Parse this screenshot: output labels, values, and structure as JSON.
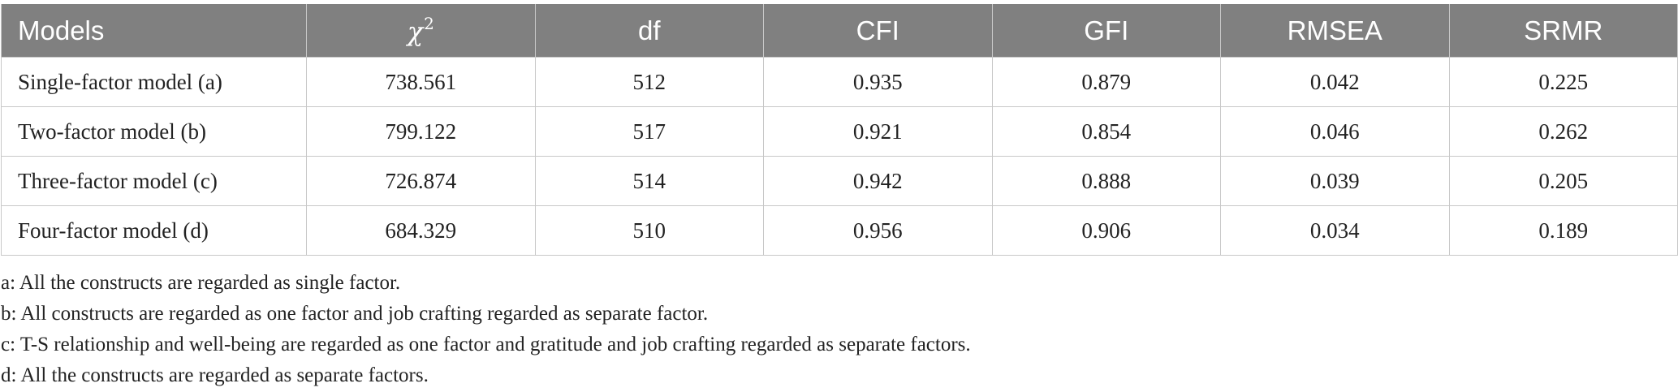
{
  "table": {
    "columns": [
      "Models",
      "χ",
      "df",
      "CFI",
      "GFI",
      "RMSEA",
      "SRMR"
    ],
    "chi_superscript": "2",
    "rows": [
      [
        "Single-factor model (a)",
        "738.561",
        "512",
        "0.935",
        "0.879",
        "0.042",
        "0.225"
      ],
      [
        "Two-factor model (b)",
        "799.122",
        "517",
        "0.921",
        "0.854",
        "0.046",
        "0.262"
      ],
      [
        "Three-factor model (c)",
        "726.874",
        "514",
        "0.942",
        "0.888",
        "0.039",
        "0.205"
      ],
      [
        "Four-factor model (d)",
        "684.329",
        "510",
        "0.956",
        "0.906",
        "0.034",
        "0.189"
      ]
    ]
  },
  "notes": [
    "a: All the constructs are regarded as single factor.",
    "b: All constructs are regarded as one factor and job crafting regarded as separate factor.",
    "c: T-S relationship and well-being are regarded as one factor and gratitude and job crafting regarded as separate factors.",
    "d: All the constructs are regarded as separate factors."
  ],
  "colors": {
    "header_bg": "#808080",
    "header_text": "#ffffff",
    "grid": "#c8c8c8",
    "body_text": "#222222"
  }
}
